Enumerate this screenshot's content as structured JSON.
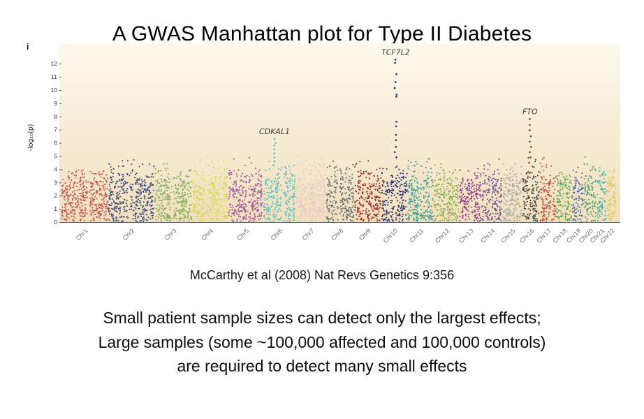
{
  "page": {
    "title": "A GWAS Manhattan plot for Type II Diabetes",
    "caption": "McCarthy et al (2008) Nat Revs Genetics 9:356",
    "body_lines": [
      "Small patient sample sizes can detect only the largest effects;",
      "Large samples (some ~100,000 affected and 100,000 controls)",
      "are required to detect many small effects"
    ]
  },
  "figure": {
    "panel_label": "i"
  },
  "chart_data": {
    "type": "scatter",
    "subtype": "manhattan",
    "title": "",
    "xlabel": "",
    "ylabel": "-log10(p)",
    "ylabel_display": "-log₁₀(p)",
    "ylim": [
      0,
      12.8
    ],
    "yticks": [
      0,
      1,
      2,
      3,
      4,
      5,
      6,
      7,
      8,
      9,
      10,
      11,
      12
    ],
    "grid": false,
    "legend": "none",
    "background_gradient": [
      "#fdf9ee",
      "#f0dfbc"
    ],
    "categories": [
      "Chr1",
      "Chr2",
      "Chr3",
      "Chr4",
      "Chr5",
      "Chr6",
      "Chr7",
      "Chr8",
      "Chr9",
      "Chr10",
      "Chr11",
      "Chr12",
      "Chr13",
      "Chr14",
      "Chr15",
      "Chr16",
      "Chr17",
      "Chr18",
      "Chr19",
      "Chr20",
      "Chr21",
      "Chr22"
    ],
    "chrom_lengths_mb": [
      249,
      243,
      198,
      190,
      182,
      171,
      159,
      146,
      141,
      136,
      135,
      133,
      115,
      107,
      102,
      90,
      83,
      80,
      59,
      63,
      48,
      51
    ],
    "chrom_colors": [
      "#c4564e",
      "#39497f",
      "#7fae58",
      "#ddd758",
      "#a4569d",
      "#5cc3c6",
      "#ecc3cb",
      "#667077",
      "#9c2f27",
      "#2b3276",
      "#3d9e98",
      "#8fae4f",
      "#93388f",
      "#6f4b9b",
      "#a7abac",
      "#3e4347",
      "#bf4a41",
      "#61a84f",
      "#4a66ae",
      "#4fa06a",
      "#45b3ab",
      "#d4ca54"
    ],
    "baseline_signal_range": [
      0,
      4.5
    ],
    "peaks": [
      {
        "gene": "CDKAL1",
        "chr": "Chr6",
        "pos": 0.35,
        "top": 6.3,
        "points": [
          6.3,
          6.0,
          5.8,
          5.5,
          5.2,
          4.9,
          4.6,
          4.3
        ],
        "color": null
      },
      {
        "gene": "TCF7L2",
        "chr": "Chr10",
        "pos": 0.55,
        "top": 12.3,
        "points": [
          12.3,
          12.05,
          11.2,
          10.6,
          10.15,
          9.65,
          9.5,
          7.6,
          7.25,
          6.6,
          6.2,
          5.7,
          5.3,
          4.9
        ],
        "color": null
      },
      {
        "gene": "FTO",
        "chr": "Chr16",
        "pos": 0.45,
        "top": 7.8,
        "points": [
          7.8,
          7.35,
          6.95,
          6.5,
          6.1,
          5.7,
          5.3,
          4.9,
          4.5
        ],
        "color": "#9c3a28"
      }
    ]
  }
}
